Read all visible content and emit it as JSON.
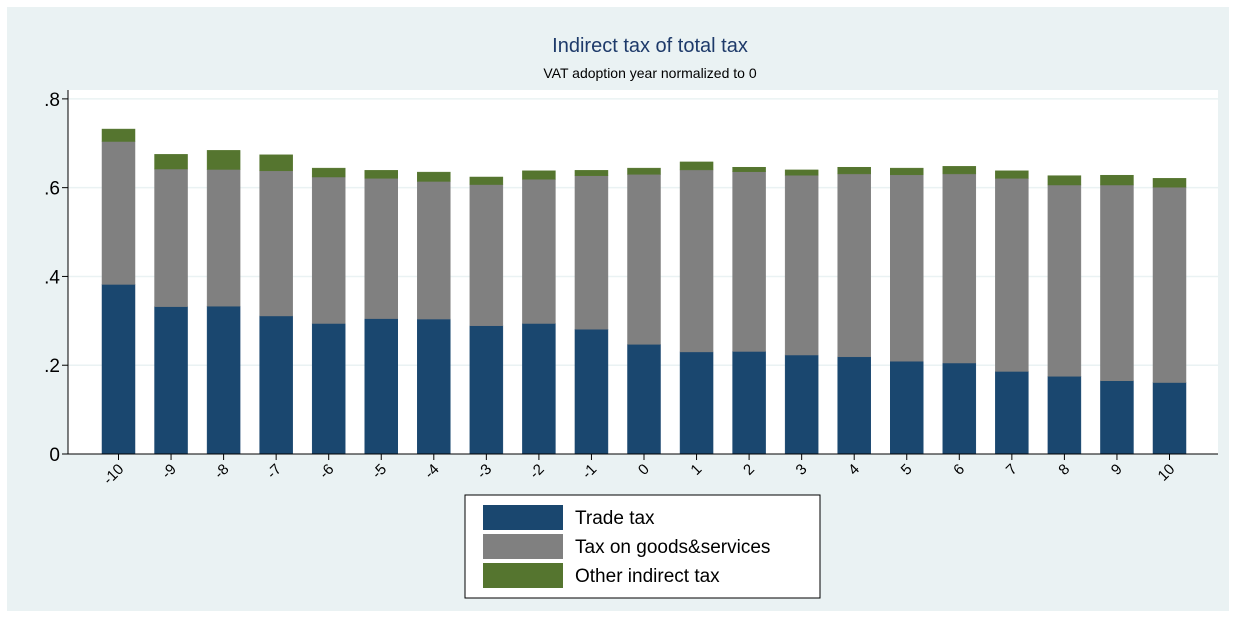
{
  "chart_data": {
    "type": "bar",
    "stacked": true,
    "title": "Indirect tax of total tax",
    "subtitle": "VAT adoption year normalized to 0",
    "categories": [
      "-10",
      "-9",
      "-8",
      "-7",
      "-6",
      "-5",
      "-4",
      "-3",
      "-2",
      "-1",
      "0",
      "1",
      "2",
      "3",
      "4",
      "5",
      "6",
      "7",
      "8",
      "9",
      "10"
    ],
    "series": [
      {
        "name": "Trade tax",
        "color": "#1a476f",
        "values": [
          0.382,
          0.332,
          0.333,
          0.311,
          0.294,
          0.305,
          0.304,
          0.289,
          0.294,
          0.281,
          0.247,
          0.23,
          0.231,
          0.223,
          0.219,
          0.209,
          0.205,
          0.186,
          0.175,
          0.165,
          0.161
        ]
      },
      {
        "name": "Tax on goods&services",
        "color": "#808080",
        "values": [
          0.322,
          0.31,
          0.308,
          0.327,
          0.33,
          0.316,
          0.31,
          0.318,
          0.325,
          0.346,
          0.383,
          0.41,
          0.405,
          0.405,
          0.412,
          0.42,
          0.426,
          0.435,
          0.431,
          0.441,
          0.44
        ]
      },
      {
        "name": "Other indirect tax",
        "color": "#55752f",
        "values": [
          0.028,
          0.033,
          0.043,
          0.036,
          0.02,
          0.018,
          0.021,
          0.017,
          0.019,
          0.012,
          0.014,
          0.018,
          0.01,
          0.012,
          0.015,
          0.015,
          0.017,
          0.017,
          0.021,
          0.022,
          0.02
        ]
      }
    ],
    "yticks": [
      0,
      0.2,
      0.4,
      0.6,
      0.8
    ],
    "ytick_labels": [
      "0",
      ".2",
      ".4",
      ".6",
      ".8"
    ],
    "ylim": [
      0,
      0.82
    ],
    "grid": true,
    "legend_position": "bottom-center",
    "background_color": "#eaf2f3",
    "plot_background": "#ffffff"
  }
}
